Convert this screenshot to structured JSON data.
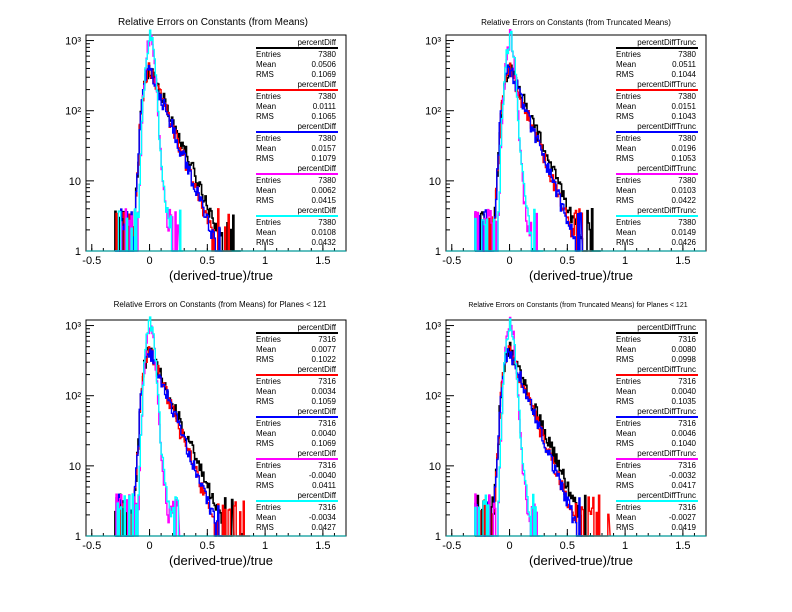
{
  "colors": {
    "black": "#000000",
    "red": "#ff0000",
    "blue": "#0000ff",
    "magenta": "#ff00ff",
    "cyan": "#00ffff"
  },
  "chart_data": [
    {
      "type": "histogram",
      "title": "Relative Errors on Constants (from Means)",
      "xlabel": "(derived-true)/true",
      "xlim": [
        -0.55,
        1.7
      ],
      "ylim": [
        1,
        1200
      ],
      "yscale": "log",
      "xticks": [
        "-0.5",
        "0",
        "0.5",
        "1",
        "1.5"
      ],
      "yticks": [
        "1",
        "10",
        "10²",
        "10³"
      ],
      "stats": [
        {
          "name": "percentDiff",
          "color": "black",
          "entries": "7380",
          "mean": "0.0506",
          "rms": "0.1069"
        },
        {
          "name": "percentDiff",
          "color": "red",
          "entries": "7380",
          "mean": "0.0111",
          "rms": "0.1065"
        },
        {
          "name": "percentDiff",
          "color": "blue",
          "entries": "7380",
          "mean": "0.0157",
          "rms": "0.1079"
        },
        {
          "name": "percentDiff",
          "color": "magenta",
          "entries": "7380",
          "mean": "0.0062",
          "rms": "0.0415"
        },
        {
          "name": "percentDiff",
          "color": "cyan",
          "entries": "7380",
          "mean": "0.0108",
          "rms": "0.0432"
        }
      ]
    },
    {
      "type": "histogram",
      "title": "Relative Errors on Constants (from Truncated Means)",
      "xlabel": "(derived-true)/true",
      "xlim": [
        -0.55,
        1.7
      ],
      "ylim": [
        1,
        1200
      ],
      "yscale": "log",
      "xticks": [
        "-0.5",
        "0",
        "0.5",
        "1",
        "1.5"
      ],
      "yticks": [
        "1",
        "10",
        "10²",
        "10³"
      ],
      "stats": [
        {
          "name": "percentDiffTrunc",
          "color": "black",
          "entries": "7380",
          "mean": "0.0511",
          "rms": "0.1044"
        },
        {
          "name": "percentDiffTrunc",
          "color": "red",
          "entries": "7380",
          "mean": "0.0151",
          "rms": "0.1043"
        },
        {
          "name": "percentDiffTrunc",
          "color": "blue",
          "entries": "7380",
          "mean": "0.0196",
          "rms": "0.1053"
        },
        {
          "name": "percentDiffTrunc",
          "color": "magenta",
          "entries": "7380",
          "mean": "0.0103",
          "rms": "0.0422"
        },
        {
          "name": "percentDiffTrunc",
          "color": "cyan",
          "entries": "7380",
          "mean": "0.0149",
          "rms": "0.0426"
        }
      ]
    },
    {
      "type": "histogram",
      "title": "Relative Errors on Constants (from Means) for Planes < 121",
      "xlabel": "(derived-true)/true",
      "xlim": [
        -0.55,
        1.7
      ],
      "ylim": [
        1,
        1200
      ],
      "yscale": "log",
      "xticks": [
        "-0.5",
        "0",
        "0.5",
        "1",
        "1.5"
      ],
      "yticks": [
        "1",
        "10",
        "10²",
        "10³"
      ],
      "stats": [
        {
          "name": "percentDiff",
          "color": "black",
          "entries": "7316",
          "mean": "0.0077",
          "rms": "0.1022"
        },
        {
          "name": "percentDiff",
          "color": "red",
          "entries": "7316",
          "mean": "0.0034",
          "rms": "0.1059"
        },
        {
          "name": "percentDiff",
          "color": "blue",
          "entries": "7316",
          "mean": "0.0040",
          "rms": "0.1069"
        },
        {
          "name": "percentDiff",
          "color": "magenta",
          "entries": "7316",
          "mean": "-0.0040",
          "rms": "0.0411"
        },
        {
          "name": "percentDiff",
          "color": "cyan",
          "entries": "7316",
          "mean": "-0.0034",
          "rms": "0.0427"
        }
      ]
    },
    {
      "type": "histogram",
      "title": "Relative Errors on Constants (from Truncated Means) for Planes < 121",
      "xlabel": "(derived-true)/true",
      "xlim": [
        -0.55,
        1.7
      ],
      "ylim": [
        1,
        1200
      ],
      "yscale": "log",
      "xticks": [
        "-0.5",
        "0",
        "0.5",
        "1",
        "1.5"
      ],
      "yticks": [
        "1",
        "10",
        "10²",
        "10³"
      ],
      "stats": [
        {
          "name": "percentDiffTrunc",
          "color": "black",
          "entries": "7316",
          "mean": "0.0080",
          "rms": "0.0998"
        },
        {
          "name": "percentDiffTrunc",
          "color": "red",
          "entries": "7316",
          "mean": "0.0040",
          "rms": "0.1035"
        },
        {
          "name": "percentDiffTrunc",
          "color": "blue",
          "entries": "7316",
          "mean": "0.0046",
          "rms": "0.1040"
        },
        {
          "name": "percentDiffTrunc",
          "color": "magenta",
          "entries": "7316",
          "mean": "-0.0032",
          "rms": "0.0417"
        },
        {
          "name": "percentDiffTrunc",
          "color": "cyan",
          "entries": "7316",
          "mean": "-0.0027",
          "rms": "0.0419"
        }
      ]
    }
  ],
  "stat_labels": {
    "entries": "Entries",
    "mean": "Mean",
    "rms": "RMS"
  }
}
